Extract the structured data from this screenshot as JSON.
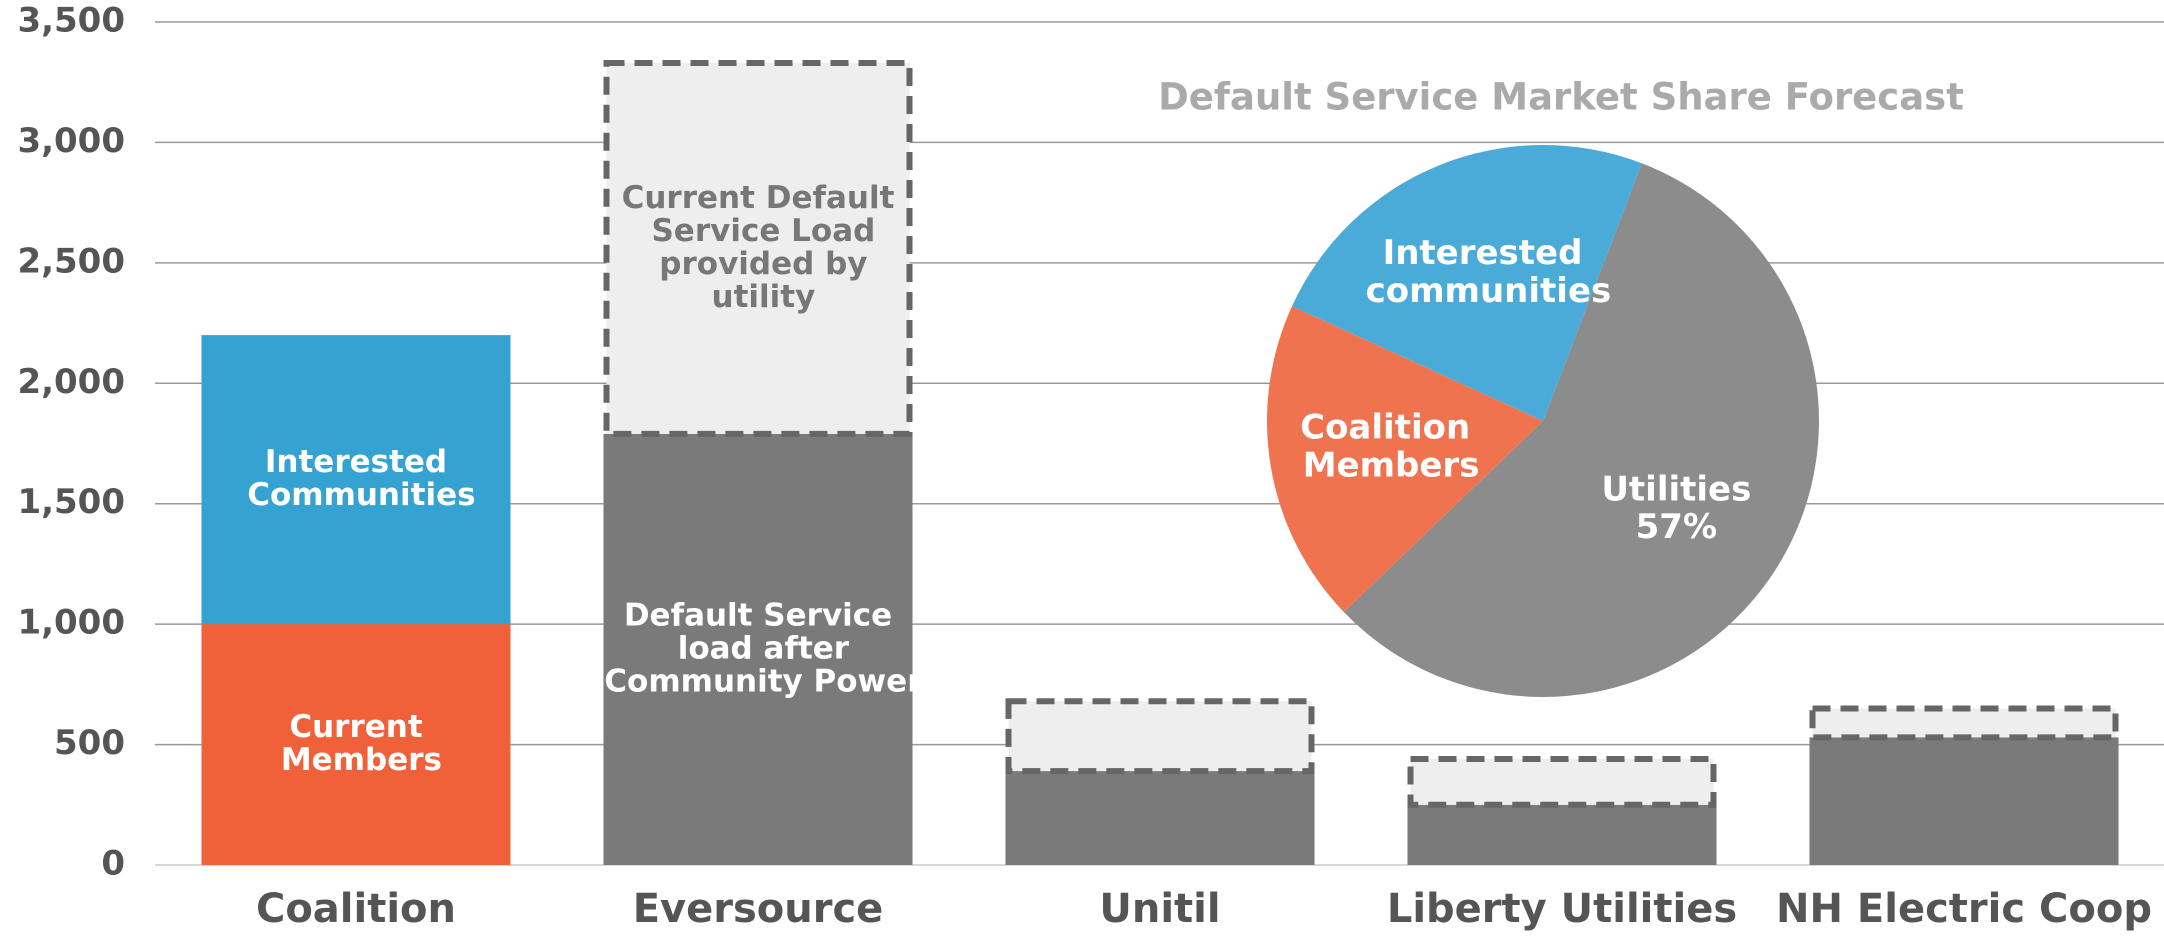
{
  "chart_data": [
    {
      "type": "stacked_bar",
      "categories": [
        "Coalition",
        "Eversource",
        "Unitil",
        "Liberty Utilities",
        "NH Electric Coop"
      ],
      "series": [
        {
          "name": "Current Members",
          "color": "#f0613a",
          "values": [
            1000,
            null,
            null,
            null,
            null
          ]
        },
        {
          "name": "Interested Communities",
          "color": "#35a3d1",
          "values": [
            1200,
            null,
            null,
            null,
            null
          ]
        },
        {
          "name": "Default Service load after Community Power",
          "color": "#7a7a7a",
          "values": [
            null,
            1790,
            390,
            250,
            530
          ]
        },
        {
          "name": "Current Default Service Load provided by utility",
          "color": "#eeeeee",
          "dashed": true,
          "values": [
            null,
            1540,
            290,
            190,
            120
          ]
        }
      ],
      "ylim": [
        0,
        3500
      ],
      "yticks": [
        0,
        500,
        {
          "value": 1000,
          "label": "1,000"
        },
        {
          "value": 1500,
          "label": "1,500"
        },
        {
          "value": 2000,
          "label": "2,000"
        },
        {
          "value": 2500,
          "label": "2,500"
        },
        {
          "value": 3000,
          "label": "3,000"
        },
        {
          "value": 3500,
          "label": "3,500"
        }
      ],
      "grid": true
    },
    {
      "type": "pie",
      "title": "Default Service Market Share Forecast",
      "categories": [
        "Utilities",
        "Coalition Members",
        "Interested communities"
      ],
      "values": [
        57,
        19,
        24
      ],
      "value_labels": [
        "57%",
        null,
        null
      ],
      "colors": [
        "#8c8c8c",
        "#f07350",
        "#4aaad8"
      ]
    }
  ]
}
